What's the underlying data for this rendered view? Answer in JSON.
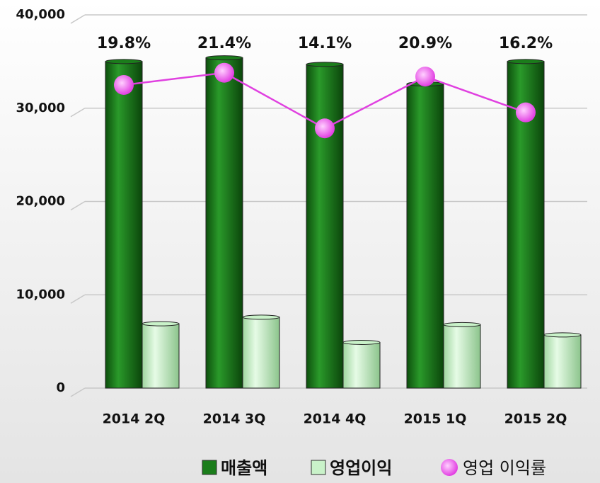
{
  "chart_data": {
    "type": "bar",
    "categories": [
      "2014 2Q",
      "2014 3Q",
      "2014 4Q",
      "2015 1Q",
      "2015 2Q"
    ],
    "series": [
      {
        "name": "매출액",
        "color": "#1b7d1b",
        "values": [
          35000,
          35400,
          34700,
          32600,
          35000
        ]
      },
      {
        "name": "영업이익",
        "color": "#c9f2c9",
        "values": [
          6900,
          7600,
          4900,
          6800,
          5700
        ]
      },
      {
        "name": "영업 이익률",
        "type": "line",
        "axis": "y2",
        "color": "#e040e0",
        "values": [
          19.8,
          21.4,
          14.1,
          20.9,
          16.2
        ],
        "value_labels": [
          "19.8%",
          "21.4%",
          "14.1%",
          "20.9%",
          "16.2%"
        ]
      }
    ],
    "ylim": [
      0,
      40000
    ],
    "yticks": [
      0,
      {
        "value": 10000,
        "label": "10,000"
      },
      {
        "value": 20000,
        "label": "20,000"
      },
      {
        "value": 30000,
        "label": "30,000"
      },
      {
        "value": 40000,
        "label": "40,000"
      }
    ],
    "y2lim": [
      -20,
      29
    ],
    "grid": true,
    "legend": "bottom-right"
  }
}
